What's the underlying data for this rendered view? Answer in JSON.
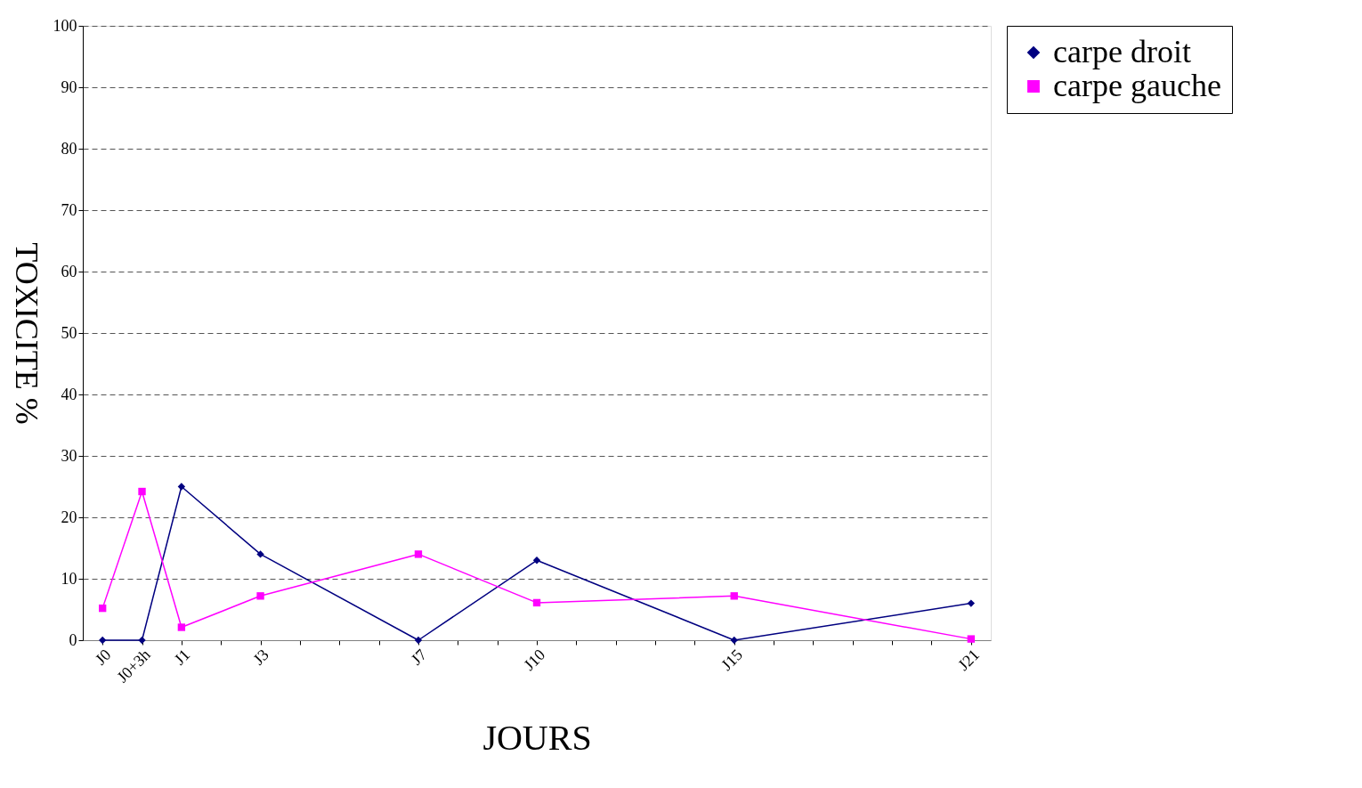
{
  "chart_data": {
    "type": "line",
    "xlabel": "JOURS",
    "ylabel": "TOXICITE %",
    "categories": [
      "J0",
      "J0+3h",
      "J1",
      null,
      "J3",
      null,
      null,
      null,
      "J7",
      null,
      null,
      "J10",
      null,
      null,
      null,
      null,
      "J15",
      null,
      null,
      null,
      null,
      null,
      "J21"
    ],
    "series": [
      {
        "name": "carpe droit",
        "color": "#000080",
        "marker": "diamond",
        "values": [
          0,
          0,
          25,
          null,
          14,
          null,
          null,
          null,
          0,
          null,
          null,
          13,
          null,
          null,
          null,
          null,
          0,
          null,
          null,
          null,
          null,
          null,
          6
        ]
      },
      {
        "name": "carpe gauche",
        "color": "#ff00ff",
        "marker": "square",
        "values": [
          5.2,
          24.2,
          2.1,
          null,
          7.2,
          null,
          null,
          null,
          14,
          null,
          null,
          6.1,
          null,
          null,
          null,
          null,
          7.2,
          null,
          null,
          null,
          null,
          null,
          0.2
        ]
      }
    ],
    "ylim": [
      0,
      100
    ],
    "yticks": [
      0,
      10,
      20,
      30,
      40,
      50,
      60,
      70,
      80,
      90,
      100
    ],
    "grid": "y",
    "legend": "right",
    "line_style": "solid"
  }
}
